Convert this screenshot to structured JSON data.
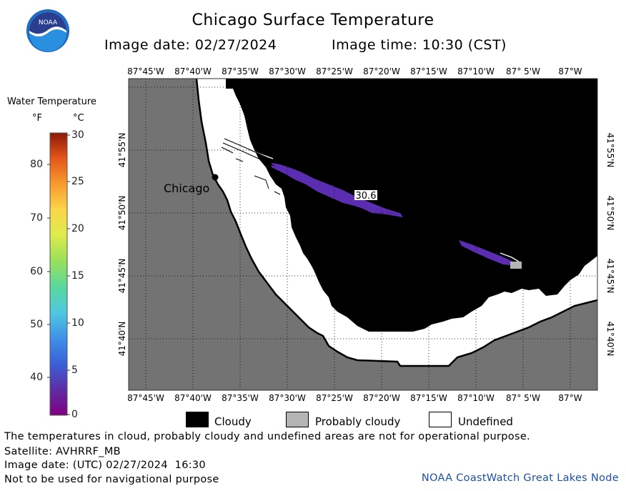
{
  "header": {
    "title": "Chicago Surface Temperature",
    "image_date_line": "Image date: 02/27/2024",
    "image_time_line": "Image time: 10:30 (CST)"
  },
  "logo": {
    "text": "NOAA",
    "icon": "noaa-logo-icon"
  },
  "colorbar": {
    "title": "Water Temperature",
    "unit_f": "°F",
    "unit_c": "°C",
    "ticks_f": [
      "80",
      "70",
      "60",
      "50",
      "40"
    ],
    "ticks_c": [
      "30",
      "25",
      "20",
      "15",
      "10",
      "5",
      "0"
    ],
    "range_c": [
      0,
      30
    ],
    "colors": [
      "#800080",
      "#5e2ca5",
      "#3b5fd6",
      "#3fa0e8",
      "#4fd3d0",
      "#58d27a",
      "#c6e64a",
      "#fbe94a",
      "#f7b431",
      "#f27520",
      "#d23d12",
      "#8b1a07"
    ]
  },
  "map": {
    "lon_labels": [
      "87°45'W",
      "87°40'W",
      "87°35'W",
      "87°30'W",
      "87°25'W",
      "87°20'W",
      "87°15'W",
      "87°10'W",
      "87° 5'W",
      "87°W"
    ],
    "lat_labels": [
      "41°55'N",
      "41°50'N",
      "41°45'N",
      "41°40'N"
    ],
    "city_label": "Chicago",
    "value_label": "30.6",
    "colors": {
      "land": "#737373",
      "cloud": "#000000",
      "undefined": "#ffffff",
      "cold_water": "#5b2db0",
      "probably_cloudy": "#b4b4b4"
    }
  },
  "legend": [
    {
      "label": "Cloudy",
      "color": "#000000"
    },
    {
      "label": "Probably cloudy",
      "color": "#b4b4b4"
    },
    {
      "label": "Undefined",
      "color": "#ffffff"
    }
  ],
  "footer": {
    "note": "The temperatures in cloud, probably cloudy and undefined areas are not for operational purpose.",
    "satellite": "Satellite: AVHRRF_MB",
    "image_date_utc": "Image date: (UTC) 02/27/2024  16:30",
    "nav_warning": "Not to be used for navigational purpose",
    "credit": "NOAA CoastWatch Great Lakes Node"
  }
}
